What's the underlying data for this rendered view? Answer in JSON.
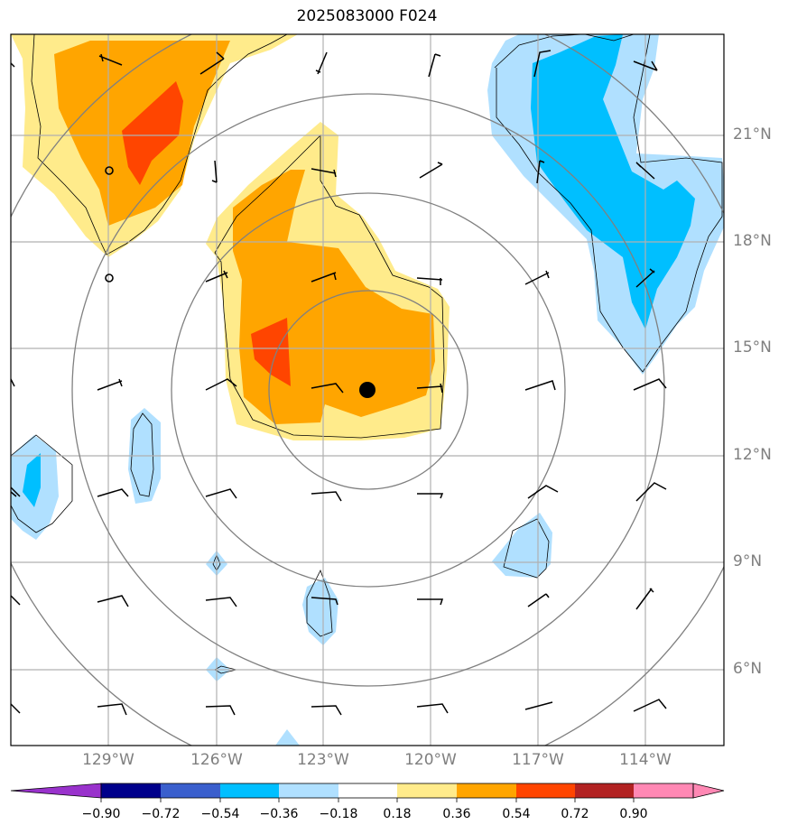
{
  "title": "2025083000 F024",
  "lat_labels": [
    "21°N",
    "18°N",
    "15°N",
    "12°N",
    "9°N",
    "6°N"
  ],
  "lon_labels": [
    "129°W",
    "126°W",
    "123°W",
    "120°W",
    "117°W",
    "114°W"
  ],
  "colorbar": {
    "ticks": [
      "−0.90",
      "−0.72",
      "−0.54",
      "−0.36",
      "−0.18",
      "0.18",
      "0.36",
      "0.54",
      "0.72",
      "0.90"
    ],
    "colors": [
      "#9932cc",
      "#00008b",
      "#3a5fcd",
      "#00bfff",
      "#b0e0ff",
      "#ffffff",
      "#ffeb8b",
      "#ffa500",
      "#ff4500",
      "#b22222",
      "#ff88b4"
    ]
  },
  "colors": {
    "light_yellow": "#ffeb8b",
    "orange": "#ffa500",
    "red_orange": "#ff4500",
    "light_blue": "#b0e0ff",
    "deep_sky_blue": "#00bfff",
    "grid": "#b0b0b0",
    "range_ring": "#808080"
  },
  "center_marker": "storm-center-dot"
}
